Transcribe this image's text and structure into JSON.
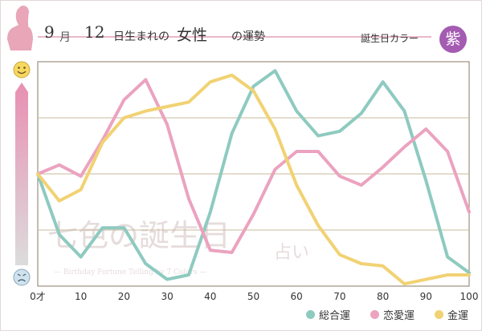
{
  "header": {
    "month": "9",
    "month_unit": "月",
    "day": "12",
    "rest": "日生まれの",
    "sex": "女性",
    "luck": "の運勢",
    "color_label": "誕生日カラー",
    "color_name": "紫",
    "color_hex": "#a45bb2"
  },
  "face_icons": {
    "top": "smile-face-icon",
    "bottom": "worried-face-icon"
  },
  "watermark": {
    "main": "七色の誕生日",
    "sub": "占い",
    "caption": "— Birthday Fortune Telling by 7 Colors —"
  },
  "chart_data": {
    "type": "line",
    "x": [
      0,
      5,
      10,
      15,
      20,
      25,
      30,
      35,
      40,
      45,
      50,
      55,
      60,
      65,
      70,
      75,
      80,
      85,
      90,
      95,
      100
    ],
    "xlim": [
      0,
      100
    ],
    "ylim": [
      0,
      100
    ],
    "x_tick_labels": [
      "0才",
      "10",
      "20",
      "30",
      "40",
      "50",
      "60",
      "70",
      "80",
      "90",
      "100"
    ],
    "x_tick_values": [
      0,
      10,
      20,
      30,
      40,
      50,
      60,
      70,
      80,
      90,
      100
    ],
    "grid": true,
    "legend_position": "bottom-right",
    "series": [
      {
        "name": "総合運",
        "color": "#8ecac0",
        "values": [
          50,
          23,
          13,
          26,
          26,
          10,
          3,
          5,
          33,
          68,
          89,
          96,
          78,
          67,
          69,
          77,
          91,
          78,
          47,
          13,
          6
        ]
      },
      {
        "name": "恋愛運",
        "color": "#eba3bf",
        "values": [
          50,
          54,
          49,
          65,
          83,
          92,
          72,
          39,
          16,
          15,
          32,
          52,
          60,
          60,
          49,
          45,
          53,
          62,
          70,
          60,
          33
        ]
      },
      {
        "name": "金運",
        "color": "#f1d273",
        "values": [
          50,
          38,
          43,
          64,
          75,
          78,
          80,
          82,
          91,
          94,
          87,
          70,
          45,
          27,
          14,
          10,
          9,
          1,
          3,
          5,
          5
        ]
      }
    ]
  }
}
